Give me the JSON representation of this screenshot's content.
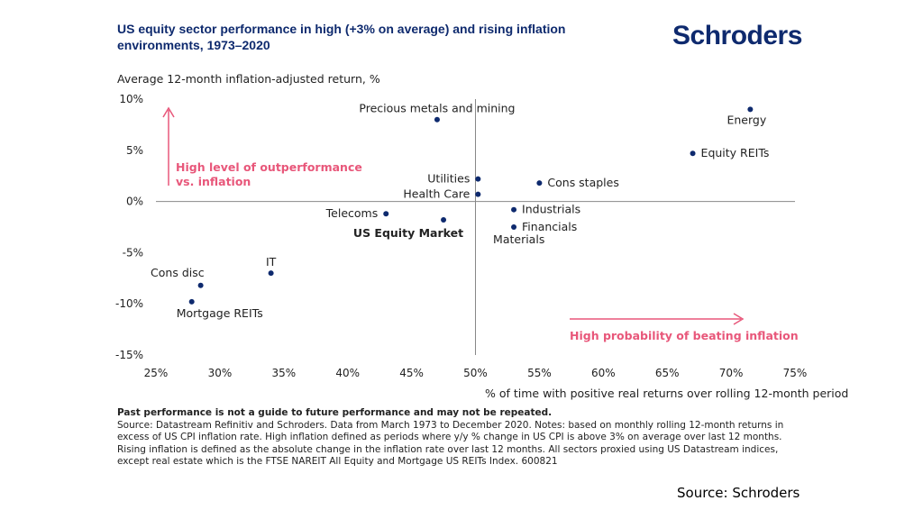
{
  "title": "US equity sector performance in high (+3% on average) and rising inflation environments, 1973–2020",
  "logo": "Schroders",
  "footer": "Source: Schroders",
  "notes": {
    "bold_line": "Past performance is not a guide to future performance and may not be repeated.",
    "body": "Source: Datastream Refinitiv and Schroders. Data from March 1973 to December 2020. Notes: based on monthly rolling 12-month returns in excess of US CPI inflation rate. High inflation defined as periods where y/y % change in US CPI is above 3% on average over last 12 months. Rising inflation is defined as the absolute change in the inflation rate over last 12 months. All sectors proxied using US Datastream indices, except real estate which is the FTSE NAREIT All Equity and Mortgage US REITs Index. 600821"
  },
  "colors": {
    "navy": "#0e2a6e",
    "pink": "#e8577a",
    "axis": "#888888"
  },
  "chart_data": {
    "type": "scatter",
    "ylabel": "Average 12-month inflation-adjusted return, %",
    "xlabel": "% of time with positive real returns over rolling 12-month period",
    "xlim": [
      25,
      75
    ],
    "ylim": [
      -15,
      10
    ],
    "x_ticks": [
      25,
      30,
      35,
      40,
      45,
      50,
      55,
      60,
      65,
      70,
      75
    ],
    "y_ticks": [
      10,
      5,
      0,
      -5,
      -10,
      -15
    ],
    "x_tick_labels": [
      "25%",
      "30%",
      "35%",
      "40%",
      "45%",
      "50%",
      "55%",
      "60%",
      "65%",
      "70%",
      "75%"
    ],
    "y_tick_labels": [
      "10%",
      "5%",
      "0%",
      "-5%",
      "-10%",
      "-15%"
    ],
    "quadrant_lines": {
      "x": 50,
      "y": 0
    },
    "points": [
      {
        "label": "Energy",
        "x": 71.5,
        "y": 9.0,
        "anchor": "below"
      },
      {
        "label": "Precious metals and mining",
        "x": 47.0,
        "y": 8.0,
        "anchor": "above"
      },
      {
        "label": "Equity REITs",
        "x": 67.0,
        "y": 4.7,
        "anchor": "right"
      },
      {
        "label": "Utilities",
        "x": 50.2,
        "y": 2.2,
        "anchor": "left"
      },
      {
        "label": "Cons staples",
        "x": 55.0,
        "y": 1.8,
        "anchor": "right"
      },
      {
        "label": "Health Care",
        "x": 50.2,
        "y": 0.7,
        "anchor": "left"
      },
      {
        "label": "Industrials",
        "x": 53.0,
        "y": -0.8,
        "anchor": "right"
      },
      {
        "label": "Telecoms",
        "x": 43.0,
        "y": -1.2,
        "anchor": "left"
      },
      {
        "label": "US Equity Market",
        "x": 47.5,
        "y": -1.8,
        "anchor": "below-left",
        "highlight": true
      },
      {
        "label": "Financials",
        "x": 53.0,
        "y": -2.5,
        "anchor": "right"
      },
      {
        "label": "Materials",
        "x": 53.0,
        "y": -2.5,
        "anchor": "below-label"
      },
      {
        "label": "IT",
        "x": 34.0,
        "y": -7.0,
        "anchor": "above"
      },
      {
        "label": "Cons disc",
        "x": 28.5,
        "y": -8.2,
        "anchor": "above-left"
      },
      {
        "label": "Mortgage REITs",
        "x": 27.8,
        "y": -9.8,
        "anchor": "below-right"
      }
    ],
    "annotations": [
      {
        "text": "High level of outperformance",
        "position": "upper-left"
      },
      {
        "text": "vs. inflation",
        "position": "upper-left"
      },
      {
        "text": "High probability of beating inflation",
        "position": "lower-right"
      }
    ]
  }
}
